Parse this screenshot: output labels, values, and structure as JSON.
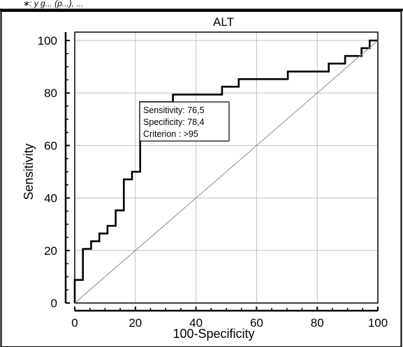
{
  "header_caption": "∗: y g...                (p...), ...",
  "chart_data": {
    "type": "line",
    "title": "ALT",
    "xlabel": "100-Specificity",
    "ylabel": "Sensitivity",
    "xlim": [
      0,
      100
    ],
    "ylim": [
      0,
      100
    ],
    "xticks": [
      0,
      20,
      40,
      60,
      80,
      100
    ],
    "yticks": [
      0,
      20,
      40,
      60,
      80,
      100
    ],
    "grid": true,
    "series": [
      {
        "style": "step",
        "color": "#000000",
        "points": [
          [
            0,
            0
          ],
          [
            0,
            8.8
          ],
          [
            2.7,
            8.8
          ],
          [
            2.7,
            20.6
          ],
          [
            5.4,
            20.6
          ],
          [
            5.4,
            23.5
          ],
          [
            8.1,
            23.5
          ],
          [
            8.1,
            26.5
          ],
          [
            10.8,
            26.5
          ],
          [
            10.8,
            29.4
          ],
          [
            13.5,
            29.4
          ],
          [
            13.5,
            35.3
          ],
          [
            16.2,
            35.3
          ],
          [
            16.2,
            47.1
          ],
          [
            18.9,
            47.1
          ],
          [
            18.9,
            50
          ],
          [
            21.6,
            50
          ],
          [
            21.6,
            76.5
          ],
          [
            32.4,
            76.5
          ],
          [
            32.4,
            79.4
          ],
          [
            48.6,
            79.4
          ],
          [
            48.6,
            82.4
          ],
          [
            54.1,
            82.4
          ],
          [
            54.1,
            85.3
          ],
          [
            70.3,
            85.3
          ],
          [
            70.3,
            88.2
          ],
          [
            83.8,
            88.2
          ],
          [
            83.8,
            91.2
          ],
          [
            89.2,
            91.2
          ],
          [
            89.2,
            94.1
          ],
          [
            94.6,
            94.1
          ],
          [
            94.6,
            97.1
          ],
          [
            97.3,
            97.1
          ],
          [
            97.3,
            100
          ],
          [
            100,
            100
          ]
        ]
      },
      {
        "style": "diagonal",
        "color": "#8a8a8a",
        "points": [
          [
            0,
            0
          ],
          [
            100,
            100
          ]
        ]
      }
    ],
    "annotation": {
      "lines": [
        "Sensitivity: 76,5",
        "Specificity: 78,4",
        "Criterion : >95"
      ],
      "x": 21.6,
      "y": 76.5
    }
  }
}
